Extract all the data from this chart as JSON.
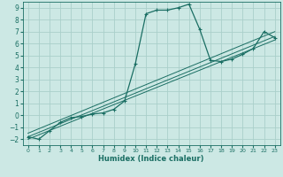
{
  "xlabel": "Humidex (Indice chaleur)",
  "ylabel": "",
  "background_color": "#cce8e4",
  "grid_color": "#aacfca",
  "line_color": "#1a6e63",
  "xlim": [
    -0.5,
    23.5
  ],
  "ylim": [
    -2.5,
    9.5
  ],
  "xticks": [
    0,
    1,
    2,
    3,
    4,
    5,
    6,
    7,
    8,
    9,
    10,
    11,
    12,
    13,
    14,
    15,
    16,
    17,
    18,
    19,
    20,
    21,
    22,
    23
  ],
  "yticks": [
    -2,
    -1,
    0,
    1,
    2,
    3,
    4,
    5,
    6,
    7,
    8,
    9
  ],
  "main_x": [
    0,
    1,
    2,
    3,
    4,
    5,
    6,
    7,
    8,
    9,
    10,
    11,
    12,
    13,
    14,
    15,
    16,
    17,
    18,
    19,
    20,
    21,
    22,
    23
  ],
  "main_y": [
    -1.8,
    -2.0,
    -1.3,
    -0.6,
    -0.2,
    -0.1,
    0.1,
    0.2,
    0.5,
    1.2,
    4.3,
    8.5,
    8.8,
    8.8,
    9.0,
    9.3,
    7.2,
    4.6,
    4.5,
    4.7,
    5.1,
    5.6,
    7.0,
    6.5
  ],
  "line1_x": [
    0,
    23
  ],
  "line1_y": [
    -2.0,
    6.3
  ],
  "line2_x": [
    0,
    23
  ],
  "line2_y": [
    -1.8,
    6.6
  ],
  "line3_x": [
    0,
    23
  ],
  "line3_y": [
    -1.5,
    7.0
  ]
}
